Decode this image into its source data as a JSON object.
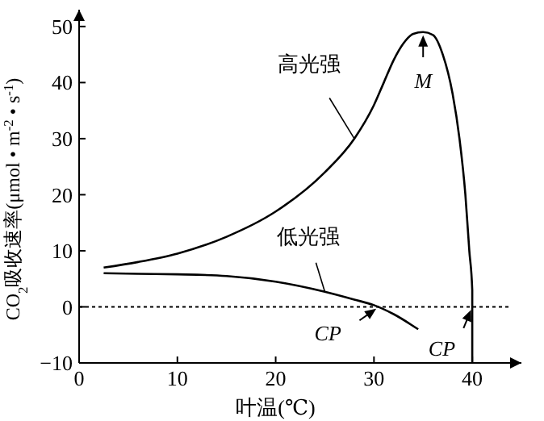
{
  "chart_data": {
    "type": "line",
    "xlabel": "叶温(℃)",
    "ylabel": "CO$_{2}$吸收速率(μmol • m$^{-2}$ • s$^{-1}$)",
    "xlim": [
      0,
      45
    ],
    "ylim": [
      -10,
      53
    ],
    "xticks": [
      0,
      10,
      20,
      30,
      40
    ],
    "yticks": [
      -10,
      0,
      10,
      20,
      30,
      40,
      50
    ],
    "marker": "none",
    "line_style": "solid",
    "series": [
      {
        "name": "高光强",
        "color": "#000000",
        "x": [
          2.5,
          6,
          10,
          15,
          20,
          25,
          28,
          30,
          31,
          32,
          33,
          34,
          35,
          36,
          37,
          38,
          38.7,
          39.3,
          39.7,
          40,
          40,
          40
        ],
        "values": [
          7,
          8,
          9.5,
          12.5,
          17,
          24,
          30,
          36,
          40,
          44,
          47,
          48.7,
          49,
          48.5,
          45,
          38,
          30,
          20,
          10,
          3,
          0,
          -10
        ]
      },
      {
        "name": "低光强",
        "color": "#000000",
        "x": [
          2.5,
          6,
          10,
          15,
          20,
          25,
          28,
          30,
          32,
          34.5
        ],
        "values": [
          6,
          5.9,
          5.8,
          5.5,
          4.5,
          2.7,
          1.3,
          0.3,
          -1.3,
          -4
        ]
      }
    ],
    "ref_lines": [
      {
        "axis": "y",
        "value": 0,
        "line_style": "dotted",
        "color": "#000000"
      }
    ],
    "annotations": [
      {
        "text": "M",
        "x": 35,
        "y": 49
      },
      {
        "text": "CP",
        "x": 30.5,
        "y": 0
      },
      {
        "text": "CP",
        "x": 40,
        "y": 0
      }
    ]
  }
}
